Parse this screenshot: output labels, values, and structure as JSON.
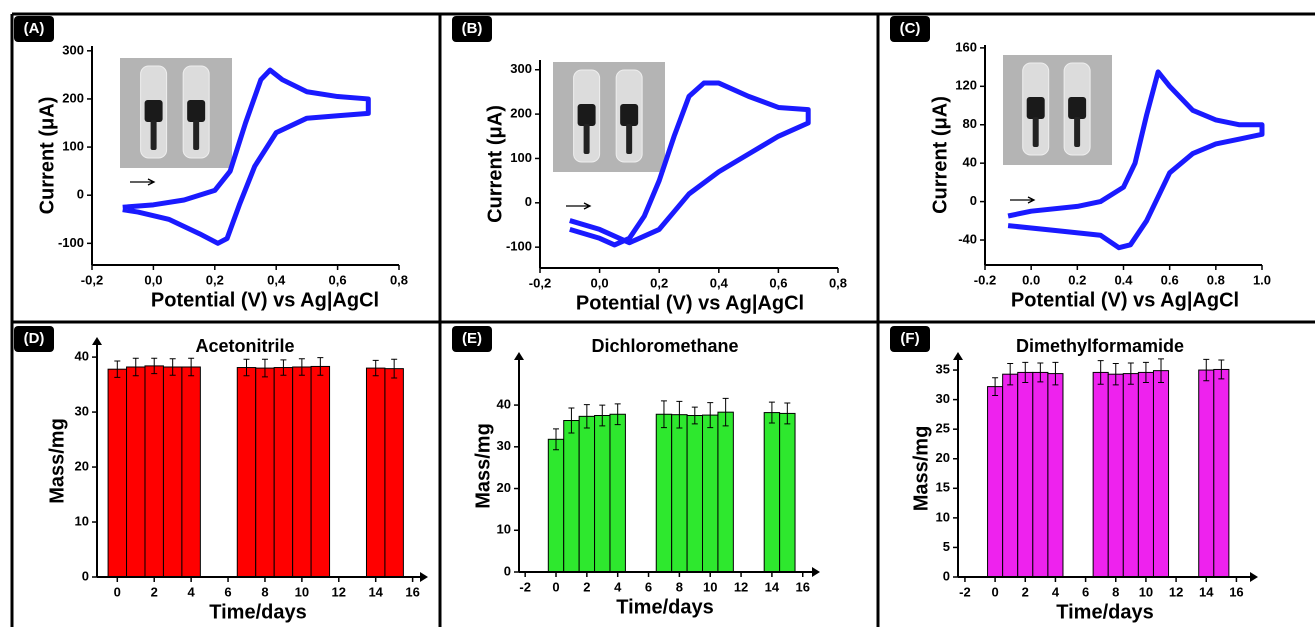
{
  "chart_data": [
    {
      "type": "line",
      "panel_label": "(A)",
      "x_label": "Potential (V) vs Ag|AgCl",
      "y_label": "Current (μA)",
      "x": [
        -0.1,
        0,
        0.1,
        0.2,
        0.25,
        0.3,
        0.35,
        0.38,
        0.42,
        0.5,
        0.6,
        0.7,
        0.7,
        0.6,
        0.5,
        0.4,
        0.33,
        0.28,
        0.24,
        0.21,
        0.15,
        0.05,
        -0.05,
        -0.1
      ],
      "series": [
        {
          "color": "#1a1aff",
          "values": [
            -25,
            -20,
            -10,
            10,
            50,
            150,
            240,
            260,
            240,
            215,
            205,
            200,
            170,
            165,
            160,
            130,
            60,
            -20,
            -90,
            -100,
            -80,
            -50,
            -35,
            -30
          ]
        }
      ],
      "xlim": [
        -0.2,
        0.8
      ],
      "ylim": [
        -145,
        310
      ],
      "xticks": [
        {
          "value": -0.2,
          "label": "-0,2"
        },
        {
          "value": 0,
          "label": "0,0"
        },
        {
          "value": 0.2,
          "label": "0,2"
        },
        {
          "value": 0.4,
          "label": "0,4"
        },
        {
          "value": 0.6,
          "label": "0,6"
        },
        {
          "value": 0.8,
          "label": "0,8"
        }
      ],
      "yticks": [
        -100,
        0,
        100,
        200,
        300
      ]
    },
    {
      "type": "line",
      "panel_label": "(B)",
      "x_label": "Potential (V) vs Ag|AgCl",
      "y_label": "Current (μA)",
      "x": [
        -0.1,
        0,
        0.05,
        0.1,
        0.15,
        0.2,
        0.25,
        0.3,
        0.35,
        0.4,
        0.5,
        0.6,
        0.7,
        0.7,
        0.6,
        0.5,
        0.4,
        0.3,
        0.25,
        0.2,
        0.1,
        0,
        -0.1
      ],
      "series": [
        {
          "color": "#1a1aff",
          "values": [
            -60,
            -80,
            -95,
            -80,
            -30,
            50,
            150,
            240,
            270,
            270,
            240,
            215,
            210,
            180,
            150,
            110,
            70,
            20,
            -20,
            -60,
            -90,
            -60,
            -40
          ]
        }
      ],
      "xlim": [
        -0.2,
        0.8
      ],
      "ylim": [
        -147,
        322
      ],
      "xticks": [
        {
          "value": -0.2,
          "label": "-0,2"
        },
        {
          "value": 0,
          "label": "0,0"
        },
        {
          "value": 0.2,
          "label": "0,2"
        },
        {
          "value": 0.4,
          "label": "0,4"
        },
        {
          "value": 0.6,
          "label": "0,6"
        },
        {
          "value": 0.8,
          "label": "0,8"
        }
      ],
      "yticks": [
        -100,
        0,
        100,
        200,
        300
      ]
    },
    {
      "type": "line",
      "panel_label": "(C)",
      "x_label": "Potential (V) vs Ag|AgCl",
      "y_label": "Current (μA)",
      "x": [
        -0.1,
        0,
        0.2,
        0.3,
        0.4,
        0.45,
        0.5,
        0.55,
        0.6,
        0.7,
        0.8,
        0.9,
        1.0,
        1.0,
        0.9,
        0.8,
        0.7,
        0.6,
        0.5,
        0.43,
        0.38,
        0.3,
        0.1,
        -0.1
      ],
      "series": [
        {
          "color": "#1a1aff",
          "values": [
            -15,
            -10,
            -5,
            0,
            15,
            40,
            90,
            135,
            120,
            95,
            85,
            80,
            80,
            70,
            65,
            60,
            50,
            30,
            -20,
            -45,
            -48,
            -35,
            -30,
            -25
          ]
        }
      ],
      "xlim": [
        -0.2,
        1.0
      ],
      "ylim": [
        -66,
        163
      ],
      "xticks": [
        -0.2,
        {
          "value": 0,
          "label": "0.0"
        },
        0.2,
        0.4,
        0.6,
        0.8,
        {
          "value": 1,
          "label": "1.0"
        }
      ],
      "yticks": [
        -40,
        0,
        40,
        80,
        120,
        160
      ]
    },
    {
      "type": "bar",
      "panel_label": "(D)",
      "title": "Acetonitrile",
      "x_label": "Time/days",
      "y_label": "Mass/mg",
      "color": "#ff0000",
      "x": [
        0,
        1,
        2,
        3,
        4,
        7,
        8,
        9,
        10,
        11,
        14,
        15
      ],
      "values": [
        37.8,
        38.2,
        38.4,
        38.2,
        38.2,
        38.1,
        38.0,
        38.1,
        38.2,
        38.3,
        38.0,
        37.9
      ],
      "errors": [
        1.5,
        1.6,
        1.4,
        1.5,
        1.6,
        1.5,
        1.6,
        1.4,
        1.5,
        1.6,
        1.4,
        1.7
      ],
      "xlim": [
        -1.1,
        16.4
      ],
      "ylim": [
        0,
        42.2
      ],
      "xticks": [
        0,
        2,
        4,
        6,
        8,
        10,
        12,
        14,
        16
      ],
      "yticks": [
        0,
        10,
        20,
        30,
        40
      ]
    },
    {
      "type": "bar",
      "panel_label": "(E)",
      "title": "Dichloromethane",
      "x_label": "Time/days",
      "y_label": "Mass/mg",
      "color": "#2ee82e",
      "x": [
        0,
        1,
        2,
        3,
        4,
        7,
        8,
        9,
        10,
        11,
        14,
        15
      ],
      "values": [
        31.8,
        36.3,
        37.3,
        37.5,
        37.8,
        37.8,
        37.7,
        37.5,
        37.6,
        38.3,
        38.2,
        38.0
      ],
      "errors": [
        2.5,
        3.0,
        2.8,
        2.5,
        2.5,
        3.2,
        3.2,
        2.0,
        3.0,
        3.3,
        2.5,
        2.5
      ],
      "xlim": [
        -2.4,
        16.6
      ],
      "ylim": [
        0,
        50.8
      ],
      "xticks": [
        -2,
        0,
        2,
        4,
        6,
        8,
        10,
        12,
        14,
        16
      ],
      "yticks": [
        0,
        10,
        20,
        30,
        40
      ]
    },
    {
      "type": "bar",
      "panel_label": "(F)",
      "title": "Dimethylformamide",
      "x_label": "Time/days",
      "y_label": "Mass/mg",
      "color": "#ee22ee",
      "x": [
        0,
        1,
        2,
        3,
        4,
        7,
        8,
        9,
        10,
        11,
        14,
        15
      ],
      "values": [
        32.2,
        34.3,
        34.6,
        34.6,
        34.4,
        34.6,
        34.3,
        34.4,
        34.6,
        34.9,
        35.0,
        35.1
      ],
      "errors": [
        1.5,
        1.8,
        1.7,
        1.6,
        1.9,
        2.0,
        1.8,
        1.8,
        1.7,
        2.0,
        1.8,
        1.6
      ],
      "xlim": [
        -2.46,
        16.9
      ],
      "ylim": [
        0,
        36.7
      ],
      "xticks": [
        -2,
        0,
        2,
        4,
        6,
        8,
        10,
        12,
        14,
        16
      ],
      "yticks": [
        0,
        5,
        10,
        15,
        20,
        25,
        30,
        35
      ]
    }
  ]
}
